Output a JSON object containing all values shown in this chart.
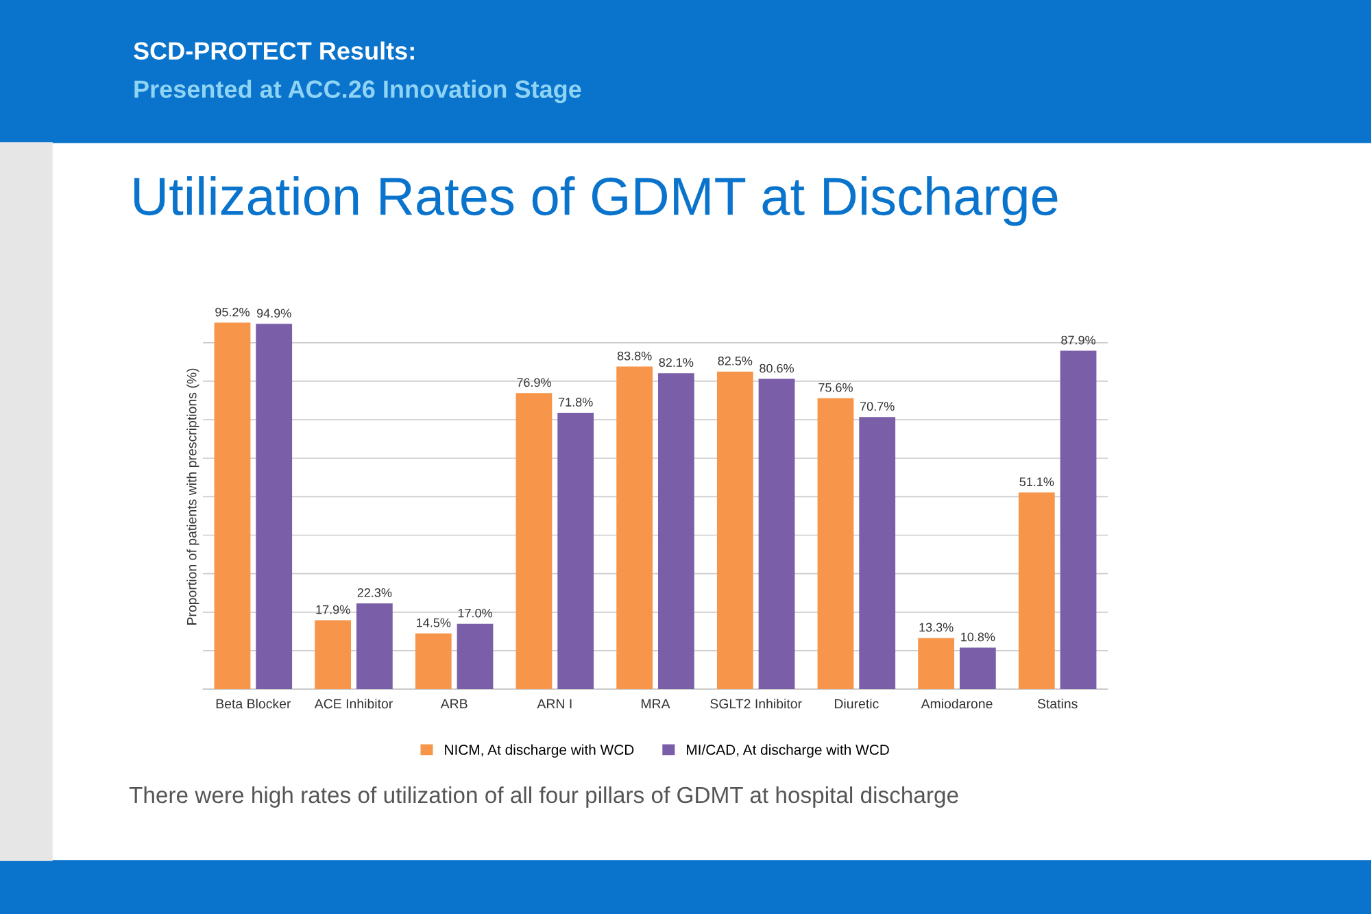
{
  "chart_data": {
    "type": "bar",
    "title": "Utilization Rates of GDMT at Discharge",
    "ylabel": "Proportion of patients with prescriptions (%)",
    "categories": [
      "Beta Blocker",
      "ACE Inhibitor",
      "ARB",
      "ARN I",
      "MRA",
      "SGLT2 Inhibitor",
      "Diuretic",
      "Amiodarone",
      "Statins"
    ],
    "series": [
      {
        "name": "NICM, At discharge with WCD",
        "color": "#f7964a",
        "values": [
          95.2,
          17.9,
          14.5,
          76.9,
          83.8,
          82.5,
          75.6,
          13.3,
          51.1
        ],
        "value_labels": [
          "95.2%",
          "17.9%",
          "14.5%",
          "76.9%",
          "83.8%",
          "82.5%",
          "75.6%",
          "13.3%",
          "51.1%"
        ]
      },
      {
        "name": "MI/CAD, At discharge with WCD",
        "color": "#7a5ea8",
        "values": [
          94.9,
          22.3,
          17.0,
          71.8,
          82.1,
          80.6,
          70.7,
          10.8,
          87.9
        ],
        "value_labels": [
          "94.9%",
          "22.3%",
          "17.0%",
          "71.8%",
          "82.1%",
          "80.6%",
          "70.7%",
          "10.8%",
          "87.9%"
        ]
      }
    ],
    "tick_labels": "x",
    "grid": "y",
    "legend": "bottom",
    "annotations": [
      "SCD-PROTECT Results:",
      "Presented at ACC.26 Innovation Stage",
      "There were high rates of utilization of all four pillars of GDMT at hospital discharge"
    ]
  }
}
